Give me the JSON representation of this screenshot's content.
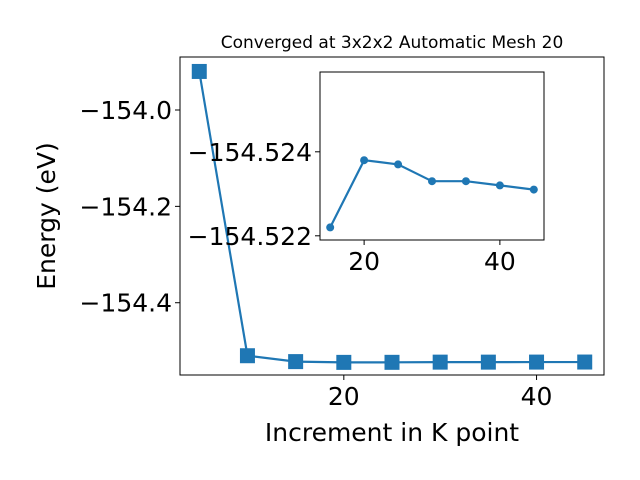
{
  "chart_data": [
    {
      "type": "line",
      "title": "Converged at 3x2x2 Automatic Mesh 20",
      "xlabel": "Increment in K point",
      "ylabel": "Energy (eV)",
      "x": [
        5,
        10,
        15,
        20,
        25,
        30,
        35,
        40,
        45
      ],
      "series": [
        {
          "values": [
            -153.92,
            -154.51,
            -154.5222,
            -154.5238,
            -154.5237,
            -154.5233,
            -154.5233,
            -154.5232,
            -154.5231
          ]
        }
      ],
      "marker": "square",
      "color": "#1f77b4",
      "xlim": [
        3,
        47
      ],
      "ylim": [
        -154.55,
        -153.89
      ],
      "xticks": [
        20,
        40
      ],
      "xtick_labels": [
        "20",
        "40"
      ],
      "yticks": [
        -154.0,
        -154.2,
        -154.4
      ],
      "ytick_labels": [
        "−154.0",
        "−154.2",
        "−154.4"
      ],
      "grid": false,
      "legend": "none"
    },
    {
      "type": "line",
      "title": "",
      "xlabel": "",
      "ylabel": "",
      "x": [
        15,
        20,
        25,
        30,
        35,
        40,
        45
      ],
      "series": [
        {
          "values": [
            -154.5222,
            -154.5238,
            -154.5237,
            -154.5233,
            -154.5233,
            -154.5232,
            -154.5231
          ]
        }
      ],
      "marker": "circle",
      "color": "#1f77b4",
      "xlim": [
        13.5,
        46.5
      ],
      "ylim": [
        -154.5219,
        -154.5259
      ],
      "xticks": [
        20,
        40
      ],
      "xtick_labels": [
        "20",
        "40"
      ],
      "yticks": [
        -154.524,
        -154.522
      ],
      "ytick_labels": [
        "−154.524",
        "−154.522"
      ],
      "grid": false,
      "legend": "none"
    }
  ]
}
